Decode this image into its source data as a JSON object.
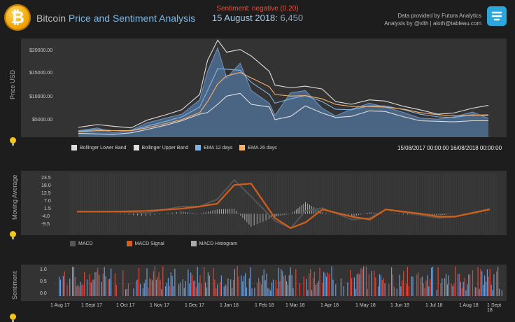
{
  "header": {
    "title_plain": "Bitcoin",
    "title_accent": "Price and Sentiment Analysis",
    "sentiment_label": "Sentiment: negative (0.20)",
    "date": "15 August 2018:",
    "price": "6,450",
    "credit_line1": "Data provided by Futura Analytics",
    "credit_line2": "Analysis by @xlth | aloth@tableau.com"
  },
  "colors": {
    "bollinger": "#dddddd",
    "ema12": "#7fb2e5",
    "ema26": "#f5b06b",
    "macd": "#555555",
    "macd_signal": "#d2601a",
    "macd_hist": "#aaaaaa",
    "sent_blue": "#6f9bd1",
    "sent_red": "#d9483b"
  },
  "price_panel": {
    "ylabel": "Price USD",
    "yticks": [
      "$20000.00",
      "$15000.00",
      "$10000.00",
      "$5000.00"
    ],
    "legend": [
      "Bollinger Lower Band",
      "Bollinger Upper Band",
      "EMA 12 days",
      "EMA 26 days"
    ],
    "range_start": "15/08/2017 00:00:00",
    "range_end": "16/08/2018 00:00:00"
  },
  "macd_panel": {
    "ylabel": "Moving Average",
    "yticks": [
      "23.5",
      "18.0",
      "12.5",
      "7.0",
      "1.5",
      "-4.0",
      "-9.5"
    ],
    "legend": [
      "MACD",
      "MACD Signal",
      "MACD Histogram"
    ]
  },
  "sentiment_panel": {
    "ylabel": "Sentiment",
    "yticks": [
      "1.0",
      "0.5",
      "0.0"
    ],
    "xticks": [
      "1 Aug 17",
      "1 Sept 17",
      "1 Oct 17",
      "1 Nov 17",
      "1 Dec 17",
      "1 Jan 18",
      "1 Feb 18",
      "1 Mar 18",
      "1 Apr 18",
      "1 May 18",
      "1 Jun 18",
      "1 Jul 18",
      "1 Aug 18",
      "1 Sept 18"
    ]
  },
  "chart_data": [
    {
      "type": "area",
      "ylabel": "Price USD",
      "ylim": [
        3000,
        21000
      ],
      "x": [
        "2017-08-15",
        "2017-09-01",
        "2017-09-15",
        "2017-10-01",
        "2017-10-15",
        "2017-11-01",
        "2017-11-15",
        "2017-12-01",
        "2017-12-08",
        "2017-12-17",
        "2017-12-25",
        "2018-01-06",
        "2018-01-16",
        "2018-02-01",
        "2018-02-06",
        "2018-02-20",
        "2018-03-05",
        "2018-03-20",
        "2018-04-01",
        "2018-04-15",
        "2018-05-01",
        "2018-05-15",
        "2018-06-01",
        "2018-06-15",
        "2018-07-01",
        "2018-07-15",
        "2018-08-01",
        "2018-08-15"
      ],
      "series": [
        {
          "name": "Price",
          "values": [
            4200,
            4700,
            3800,
            4300,
            5600,
            6500,
            7200,
            9800,
            15000,
            19300,
            13800,
            16500,
            11500,
            9200,
            7000,
            11100,
            11500,
            8300,
            6900,
            8100,
            9200,
            8500,
            7500,
            6500,
            6300,
            6700,
            7600,
            6450
          ]
        },
        {
          "name": "Bollinger Upper Band",
          "values": [
            4800,
            5300,
            5000,
            4700,
            6100,
            7100,
            8000,
            10800,
            17000,
            20700,
            18500,
            19000,
            17800,
            15000,
            12500,
            12000,
            12300,
            11800,
            9500,
            9000,
            9800,
            9600,
            8600,
            8000,
            7200,
            7400,
            8300,
            8800
          ]
        },
        {
          "name": "Bollinger Lower Band",
          "values": [
            3700,
            3600,
            3500,
            3800,
            4400,
            5200,
            6000,
            7200,
            7500,
            9000,
            10500,
            11000,
            9000,
            8500,
            6200,
            6800,
            8700,
            7400,
            6600,
            6800,
            7800,
            7700,
            6700,
            6000,
            5900,
            5800,
            6000,
            6000
          ]
        },
        {
          "name": "EMA 12 days",
          "values": [
            4100,
            4400,
            4200,
            4200,
            5000,
            5900,
            6700,
            8500,
            11500,
            15500,
            15400,
            15200,
            13000,
            10800,
            9200,
            10000,
            10600,
            9500,
            8100,
            8000,
            8700,
            8700,
            8000,
            7200,
            6700,
            6600,
            7100,
            6900
          ]
        },
        {
          "name": "EMA 26 days",
          "values": [
            4000,
            4200,
            4200,
            4200,
            4700,
            5500,
            6200,
            7500,
            9500,
            12700,
            14200,
            14800,
            13800,
            12200,
            10800,
            10500,
            10600,
            10000,
            9000,
            8600,
            8600,
            8500,
            8100,
            7500,
            7100,
            6900,
            7000,
            7100
          ]
        }
      ]
    },
    {
      "type": "line",
      "ylabel": "Moving Average",
      "ylim": [
        -12,
        26
      ],
      "x": [
        "2017-08-15",
        "2017-09-15",
        "2017-10-15",
        "2017-11-15",
        "2017-12-01",
        "2017-12-17",
        "2018-01-01",
        "2018-01-16",
        "2018-02-06",
        "2018-02-20",
        "2018-03-05",
        "2018-03-20",
        "2018-04-15",
        "2018-05-01",
        "2018-05-15",
        "2018-06-15",
        "2018-07-01",
        "2018-07-15",
        "2018-08-15"
      ],
      "series": [
        {
          "name": "MACD",
          "values": [
            1.5,
            1.5,
            0.5,
            5,
            5,
            10,
            23.5,
            12,
            -5,
            -10,
            2,
            4,
            -4,
            -3,
            3,
            -1,
            -3,
            -2,
            3.5
          ]
        },
        {
          "name": "MACD Signal",
          "values": [
            1.5,
            1.5,
            2,
            3.5,
            5,
            7,
            20,
            21,
            -3,
            -10,
            -6,
            3,
            -2,
            -4,
            3,
            0,
            -2,
            -2,
            3
          ]
        }
      ]
    }
  ]
}
